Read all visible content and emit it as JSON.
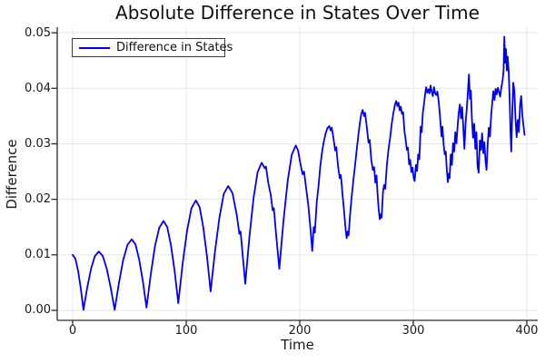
{
  "chart_data": {
    "type": "line",
    "title": "Absolute Difference in States Over Time",
    "xlabel": "Time",
    "ylabel": "Difference",
    "xlim": [
      -13.6,
      409.6
    ],
    "ylim": [
      -0.0018,
      0.051
    ],
    "xticks": [
      0,
      100,
      200,
      300,
      400
    ],
    "xtick_labels": [
      "0",
      "100",
      "200",
      "300",
      "400"
    ],
    "yticks": [
      0.0,
      0.01,
      0.02,
      0.03,
      0.04,
      0.05
    ],
    "ytick_labels": [
      "0.00",
      "0.01",
      "0.02",
      "0.03",
      "0.04",
      "0.05"
    ],
    "grid": true,
    "legend": {
      "position": "top-left",
      "entries": [
        {
          "label": "Difference in States",
          "color": "#0000ee"
        }
      ]
    },
    "series": [
      {
        "name": "Difference in States",
        "color": "#0000ee",
        "line_width": 1.8,
        "points": [
          [
            0,
            0.01
          ],
          [
            2.4,
            0.0093
          ],
          [
            4.8,
            0.0071
          ],
          [
            7.1,
            0.004
          ],
          [
            9.5,
            0.0001
          ],
          [
            12.9,
            0.0042
          ],
          [
            16.3,
            0.0076
          ],
          [
            19.6,
            0.0098
          ],
          [
            23,
            0.0106
          ],
          [
            26.5,
            0.0098
          ],
          [
            30,
            0.0075
          ],
          [
            33.5,
            0.0041
          ],
          [
            37,
            0.0001
          ],
          [
            40.8,
            0.005
          ],
          [
            44.5,
            0.0091
          ],
          [
            48.3,
            0.0118
          ],
          [
            52,
            0.0128
          ],
          [
            55.3,
            0.0119
          ],
          [
            58.5,
            0.0092
          ],
          [
            61.8,
            0.0053
          ],
          [
            65,
            0.0005
          ],
          [
            68.8,
            0.0065
          ],
          [
            72.5,
            0.0116
          ],
          [
            76.3,
            0.0149
          ],
          [
            80,
            0.0161
          ],
          [
            83.3,
            0.015
          ],
          [
            86.5,
            0.0118
          ],
          [
            89.8,
            0.0071
          ],
          [
            93,
            0.0013
          ],
          [
            96.9,
            0.0085
          ],
          [
            100.8,
            0.0144
          ],
          [
            104.6,
            0.0184
          ],
          [
            108.5,
            0.0198
          ],
          [
            111.8,
            0.0186
          ],
          [
            115,
            0.015
          ],
          [
            118.3,
            0.0097
          ],
          [
            121.5,
            0.0034
          ],
          [
            125.4,
            0.0107
          ],
          [
            129.3,
            0.0168
          ],
          [
            133.1,
            0.021
          ],
          [
            137,
            0.0224
          ],
          [
            140.8,
            0.0211
          ],
          [
            144.5,
            0.0172
          ],
          [
            146.8,
            0.0138
          ],
          [
            147.9,
            0.0142
          ],
          [
            149.5,
            0.0105
          ],
          [
            152,
            0.0048
          ],
          [
            155.6,
            0.0131
          ],
          [
            159.3,
            0.0202
          ],
          [
            162.9,
            0.0249
          ],
          [
            166.5,
            0.0266
          ],
          [
            169.2,
            0.0256
          ],
          [
            170.2,
            0.0259
          ],
          [
            172.4,
            0.0228
          ],
          [
            174.3,
            0.021
          ],
          [
            176.2,
            0.018
          ],
          [
            177.2,
            0.0184
          ],
          [
            179.1,
            0.0138
          ],
          [
            182,
            0.0075
          ],
          [
            185.6,
            0.016
          ],
          [
            189.3,
            0.0232
          ],
          [
            192.9,
            0.028
          ],
          [
            196.5,
            0.0297
          ],
          [
            198.5,
            0.0288
          ],
          [
            200.5,
            0.0265
          ],
          [
            202.5,
            0.0245
          ],
          [
            203.8,
            0.025
          ],
          [
            205.5,
            0.0222
          ],
          [
            207.5,
            0.019
          ],
          [
            209.5,
            0.0146
          ],
          [
            211,
            0.0107
          ],
          [
            212.3,
            0.015
          ],
          [
            213.3,
            0.014
          ],
          [
            215,
            0.0196
          ],
          [
            216.5,
            0.0223
          ],
          [
            218,
            0.0258
          ],
          [
            219.5,
            0.0283
          ],
          [
            221,
            0.0302
          ],
          [
            222.7,
            0.0318
          ],
          [
            224.3,
            0.0328
          ],
          [
            226,
            0.0332
          ],
          [
            227.2,
            0.0324
          ],
          [
            228.2,
            0.0329
          ],
          [
            229.7,
            0.031
          ],
          [
            231.2,
            0.0288
          ],
          [
            232.2,
            0.0294
          ],
          [
            233.7,
            0.026
          ],
          [
            235.2,
            0.0238
          ],
          [
            236.2,
            0.0244
          ],
          [
            237.7,
            0.0208
          ],
          [
            239.2,
            0.0175
          ],
          [
            240.3,
            0.0148
          ],
          [
            241.3,
            0.013
          ],
          [
            242.2,
            0.0142
          ],
          [
            243,
            0.0135
          ],
          [
            244.3,
            0.0172
          ],
          [
            245.8,
            0.0206
          ],
          [
            247.3,
            0.0236
          ],
          [
            248.8,
            0.0263
          ],
          [
            250.3,
            0.0292
          ],
          [
            251.8,
            0.0319
          ],
          [
            253.2,
            0.0341
          ],
          [
            254.3,
            0.0355
          ],
          [
            255.4,
            0.0361
          ],
          [
            256.6,
            0.035
          ],
          [
            257.5,
            0.0356
          ],
          [
            258.5,
            0.034
          ],
          [
            259.6,
            0.032
          ],
          [
            260.6,
            0.0302
          ],
          [
            261.6,
            0.0307
          ],
          [
            263,
            0.0271
          ],
          [
            264.4,
            0.0253
          ],
          [
            265.5,
            0.0258
          ],
          [
            266.6,
            0.023
          ],
          [
            267.6,
            0.0243
          ],
          [
            268.7,
            0.0204
          ],
          [
            269.6,
            0.018
          ],
          [
            270.5,
            0.0164
          ],
          [
            271.3,
            0.0173
          ],
          [
            272.1,
            0.0167
          ],
          [
            273.3,
            0.0213
          ],
          [
            274.3,
            0.0226
          ],
          [
            275.3,
            0.0219
          ],
          [
            276.7,
            0.0261
          ],
          [
            278.1,
            0.0289
          ],
          [
            279.6,
            0.0311
          ],
          [
            281,
            0.0336
          ],
          [
            282.5,
            0.0356
          ],
          [
            284,
            0.0372
          ],
          [
            285,
            0.0377
          ],
          [
            286,
            0.0368
          ],
          [
            287,
            0.0374
          ],
          [
            288,
            0.036
          ],
          [
            289,
            0.0367
          ],
          [
            290,
            0.0354
          ],
          [
            291,
            0.0357
          ],
          [
            292.3,
            0.0321
          ],
          [
            293.3,
            0.0307
          ],
          [
            294.3,
            0.0289
          ],
          [
            295.3,
            0.0293
          ],
          [
            296.3,
            0.0263
          ],
          [
            297.3,
            0.0271
          ],
          [
            298.3,
            0.0249
          ],
          [
            299.3,
            0.0257
          ],
          [
            300.3,
            0.0239
          ],
          [
            301.2,
            0.0233
          ],
          [
            302.3,
            0.0262
          ],
          [
            303.3,
            0.0251
          ],
          [
            304.3,
            0.0281
          ],
          [
            305.3,
            0.0272
          ],
          [
            306.5,
            0.0331
          ],
          [
            307.4,
            0.0321
          ],
          [
            308.4,
            0.0356
          ],
          [
            309.4,
            0.0371
          ],
          [
            310.4,
            0.0389
          ],
          [
            311.3,
            0.0402
          ],
          [
            312.3,
            0.0392
          ],
          [
            313.3,
            0.0398
          ],
          [
            314.3,
            0.0391
          ],
          [
            315.2,
            0.0405
          ],
          [
            316.2,
            0.0394
          ],
          [
            317.2,
            0.0386
          ],
          [
            318.2,
            0.0402
          ],
          [
            319.2,
            0.0391
          ],
          [
            320.2,
            0.0388
          ],
          [
            321.2,
            0.0394
          ],
          [
            322.2,
            0.0379
          ],
          [
            323.2,
            0.0358
          ],
          [
            324.2,
            0.033
          ],
          [
            324.9,
            0.0313
          ],
          [
            325.7,
            0.0331
          ],
          [
            326.7,
            0.0299
          ],
          [
            327.7,
            0.0281
          ],
          [
            328.6,
            0.0286
          ],
          [
            329.5,
            0.0254
          ],
          [
            330.4,
            0.0231
          ],
          [
            331.2,
            0.0246
          ],
          [
            332,
            0.0238
          ],
          [
            333,
            0.0281
          ],
          [
            334,
            0.0262
          ],
          [
            335,
            0.0301
          ],
          [
            336,
            0.0286
          ],
          [
            337,
            0.0321
          ],
          [
            338,
            0.0301
          ],
          [
            339,
            0.0331
          ],
          [
            340,
            0.0356
          ],
          [
            341,
            0.0371
          ],
          [
            342,
            0.0346
          ],
          [
            343,
            0.0366
          ],
          [
            344,
            0.0331
          ],
          [
            345,
            0.0291
          ],
          [
            346,
            0.0336
          ],
          [
            347,
            0.0361
          ],
          [
            348,
            0.0391
          ],
          [
            349,
            0.0425
          ],
          [
            349.9,
            0.0381
          ],
          [
            350.7,
            0.0396
          ],
          [
            351.6,
            0.0346
          ],
          [
            352.6,
            0.0311
          ],
          [
            353.6,
            0.0336
          ],
          [
            354.6,
            0.0291
          ],
          [
            355.6,
            0.0321
          ],
          [
            356.6,
            0.0259
          ],
          [
            357.6,
            0.0248
          ],
          [
            358.6,
            0.0306
          ],
          [
            359.6,
            0.0289
          ],
          [
            360.6,
            0.0319
          ],
          [
            361.6,
            0.0283
          ],
          [
            362.6,
            0.0303
          ],
          [
            363.6,
            0.0269
          ],
          [
            364.5,
            0.0253
          ],
          [
            365.5,
            0.0299
          ],
          [
            366.5,
            0.0329
          ],
          [
            367.5,
            0.0313
          ],
          [
            368.5,
            0.0349
          ],
          [
            369.5,
            0.0373
          ],
          [
            370.5,
            0.0395
          ],
          [
            371.5,
            0.0379
          ],
          [
            372.5,
            0.0399
          ],
          [
            373.5,
            0.0389
          ],
          [
            374.5,
            0.0401
          ],
          [
            375.5,
            0.0393
          ],
          [
            376.5,
            0.0385
          ],
          [
            377.5,
            0.0401
          ],
          [
            378.6,
            0.0413
          ],
          [
            379.5,
            0.0432
          ],
          [
            380.2,
            0.0493
          ],
          [
            380.9,
            0.0446
          ],
          [
            381.6,
            0.0471
          ],
          [
            382.4,
            0.0432
          ],
          [
            383.1,
            0.0457
          ],
          [
            384,
            0.0431
          ],
          [
            384.8,
            0.0386
          ],
          [
            385.6,
            0.0321
          ],
          [
            386.3,
            0.0286
          ],
          [
            387.1,
            0.0351
          ],
          [
            388,
            0.041
          ],
          [
            389,
            0.0396
          ],
          [
            390,
            0.0346
          ],
          [
            391,
            0.0312
          ],
          [
            392,
            0.0343
          ],
          [
            393,
            0.0321
          ],
          [
            394,
            0.0369
          ],
          [
            395,
            0.0386
          ],
          [
            396,
            0.0353
          ],
          [
            397,
            0.0333
          ],
          [
            398,
            0.0316
          ]
        ]
      }
    ]
  },
  "style": {
    "line_color": "#0000ee",
    "grid_color": "#e6e6e6",
    "spine_color": "#2a2a2a",
    "text_color": "#1a1a1a",
    "background": "#ffffff",
    "legend_border_color": "#3c3c3c"
  },
  "layout_note": ""
}
